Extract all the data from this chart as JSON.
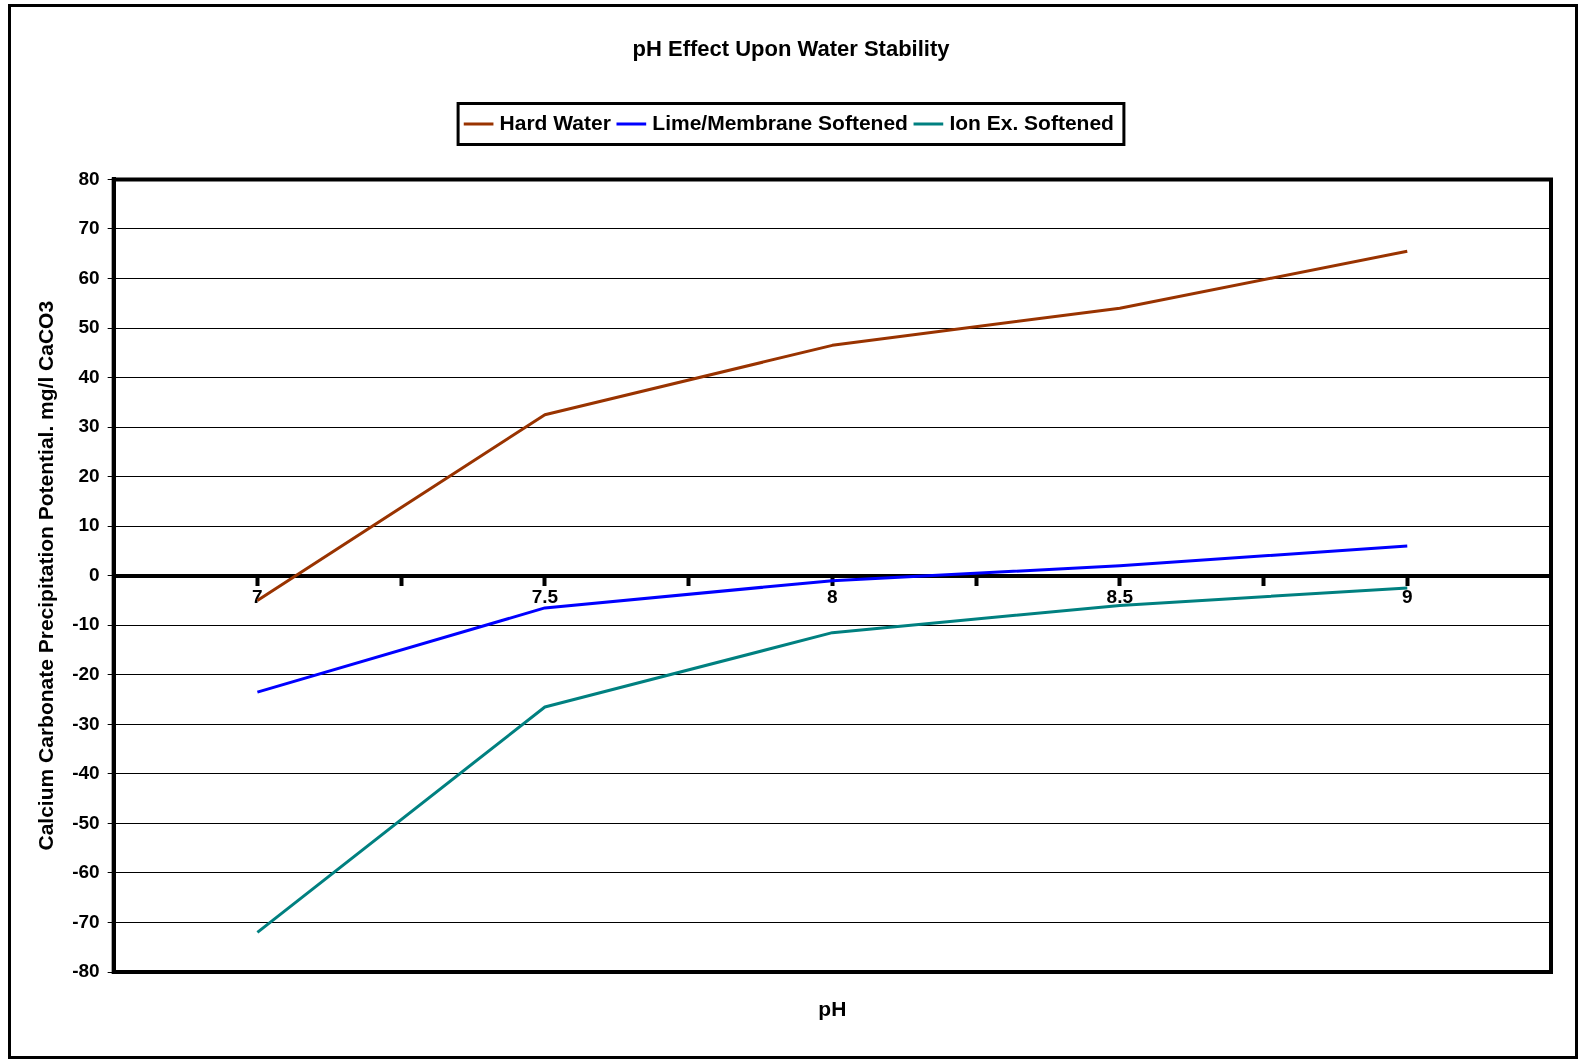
{
  "chart_data": {
    "type": "line",
    "title": "pH Effect Upon Water Stability",
    "xlabel": "pH",
    "ylabel": "Calcium Carbonate Precipitation Potential. mg/l CaCO3",
    "x": [
      7,
      7.5,
      8,
      8.5,
      9
    ],
    "series": [
      {
        "name": "Hard Water",
        "color": "#993300",
        "values": [
          -5,
          32.5,
          46.5,
          54,
          65.5
        ]
      },
      {
        "name": "Lime/Membrane Softened",
        "color": "#0000ff",
        "values": [
          -23.5,
          -6.5,
          -1,
          2,
          6
        ]
      },
      {
        "name": "Ion Ex. Softened",
        "color": "#008080",
        "values": [
          -72,
          -26.5,
          -11.5,
          -6,
          -2.5
        ]
      }
    ],
    "xlim": [
      6.75,
      9.25
    ],
    "xticks": [
      7,
      {
        "value": 7.25,
        "label": null
      },
      7.5,
      {
        "value": 7.75,
        "label": null
      },
      8,
      {
        "value": 8.25,
        "label": null
      },
      8.5,
      {
        "value": 8.75,
        "label": null
      },
      9
    ],
    "ylim": [
      -80,
      80
    ],
    "yticks": [
      -80,
      -70,
      -60,
      -50,
      -40,
      -30,
      -20,
      -10,
      0,
      10,
      20,
      30,
      40,
      50,
      60,
      70,
      80
    ],
    "grid": "y",
    "legend": "top",
    "marker": "none",
    "line_style": "solid"
  }
}
